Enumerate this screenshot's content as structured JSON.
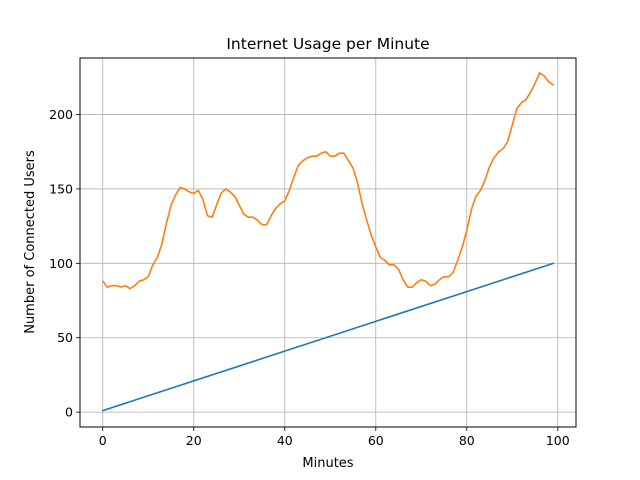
{
  "chart_data": {
    "type": "line",
    "title": "Internet Usage per Minute",
    "xlabel": "Minutes",
    "ylabel": "Number of Connected Users",
    "xlim": [
      -5,
      104
    ],
    "ylim": [
      -10,
      238
    ],
    "xticks": [
      0,
      20,
      40,
      60,
      80,
      100
    ],
    "yticks": [
      0,
      50,
      100,
      150,
      200
    ],
    "grid": true,
    "series": [
      {
        "color": "#1f77b4",
        "x": [
          0,
          99
        ],
        "y": [
          1,
          100
        ]
      },
      {
        "color": "#ff7f0e",
        "x": [
          0,
          1,
          2,
          3,
          4,
          5,
          6,
          7,
          8,
          9,
          10,
          11,
          12,
          13,
          14,
          15,
          16,
          17,
          18,
          19,
          20,
          21,
          22,
          23,
          24,
          25,
          26,
          27,
          28,
          29,
          30,
          31,
          32,
          33,
          34,
          35,
          36,
          37,
          38,
          39,
          40,
          41,
          42,
          43,
          44,
          45,
          46,
          47,
          48,
          49,
          50,
          51,
          52,
          53,
          54,
          55,
          56,
          57,
          58,
          59,
          60,
          61,
          62,
          63,
          64,
          65,
          66,
          67,
          68,
          69,
          70,
          71,
          72,
          73,
          74,
          75,
          76,
          77,
          78,
          79,
          80,
          81,
          82,
          83,
          84,
          85,
          86,
          87,
          88,
          89,
          90,
          91,
          92,
          93,
          94,
          95,
          96,
          97,
          98,
          99
        ],
        "y": [
          88,
          84,
          85,
          85,
          84,
          85,
          83,
          85,
          88,
          89,
          91,
          99,
          104,
          113,
          127,
          139,
          146,
          151,
          150,
          148,
          147,
          149,
          143,
          132,
          131,
          139,
          147,
          150,
          148,
          145,
          139,
          133,
          131,
          131,
          129,
          126,
          126,
          132,
          137,
          140,
          142,
          149,
          158,
          166,
          169,
          171,
          172,
          172,
          174,
          175,
          172,
          172,
          174,
          174,
          169,
          164,
          154,
          140,
          129,
          119,
          111,
          104,
          102,
          99,
          99,
          96,
          89,
          84,
          84,
          87,
          89,
          88,
          85,
          86,
          89,
          91,
          91,
          94,
          102,
          111,
          122,
          136,
          145,
          149,
          156,
          165,
          171,
          175,
          177,
          182,
          193,
          204,
          208,
          210,
          215,
          221,
          228,
          226,
          222,
          220
        ]
      }
    ]
  }
}
